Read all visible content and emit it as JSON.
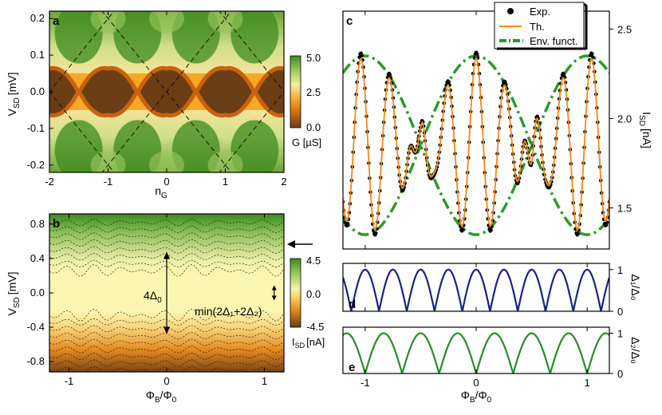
{
  "chart_data": [
    {
      "panel": "a",
      "type": "heatmap",
      "xlabel_main": "n",
      "xlabel_sub": "G",
      "ylabel_main": "V",
      "ylabel_sub": "SD",
      "ylabel_unit": "[mV]",
      "xlim": [
        -2,
        2
      ],
      "ylim": [
        -0.22,
        0.22
      ],
      "xticks": [
        "-2",
        "-1",
        "0",
        "1",
        "2"
      ],
      "yticks": [
        "0.2",
        "0.1",
        "0.0",
        "-0.1",
        "-0.2"
      ],
      "ytick_values": [
        0.2,
        0.1,
        0.0,
        -0.1,
        -0.2
      ],
      "xtick_values": [
        -2,
        -1,
        0,
        1,
        2
      ],
      "colorbar": {
        "ticks": [
          "5.0",
          "2.5",
          "0.0"
        ],
        "label": "G [µS]",
        "range": [
          0,
          5
        ]
      },
      "colors": {
        "low": "#6b3d14",
        "mid": "#f7a11a",
        "high": "#3d8a1e",
        "pale": "#f7f2a8"
      },
      "diamond_centers": [
        -2,
        -1,
        0,
        1,
        2
      ],
      "diamond_half_width_V": 0.055
    },
    {
      "panel": "b",
      "type": "heatmap",
      "xlabel": "ΦB/Φ0",
      "ylabel_main": "V",
      "ylabel_sub": "SD",
      "ylabel_unit": "[mV]",
      "xlim": [
        -1.2,
        1.2
      ],
      "ylim": [
        -0.92,
        0.92
      ],
      "xticks": [
        "-1",
        "0",
        "1"
      ],
      "xtick_values": [
        -1,
        0,
        1
      ],
      "yticks": [
        "0.8",
        "0.4",
        "0.0",
        "-0.4",
        "-0.8"
      ],
      "ytick_values": [
        0.8,
        0.4,
        0.0,
        -0.4,
        -0.8
      ],
      "colorbar": {
        "ticks": [
          "4.5",
          "0.0",
          "-4.5"
        ],
        "label_main": "I",
        "label_sub": "SD",
        "label_unit": "[nA]",
        "range": [
          -4.5,
          4.5
        ]
      },
      "annotations": [
        {
          "text_main": "4Δ",
          "text_sub": "0",
          "x": 0.0,
          "y_from": 0.46,
          "y_to": -0.46
        },
        {
          "text": "min(2Δ₁+2Δ₂)",
          "x": 1.1,
          "y_from": 0.07,
          "y_to": -0.07
        }
      ],
      "arrow_marker_V": 0.6
    },
    {
      "panel": "c",
      "type": "line",
      "xlim": [
        -1.2,
        1.2
      ],
      "ylim": [
        1.27,
        2.6
      ],
      "xtick_values": [
        -1,
        0,
        1
      ],
      "ylabel_main": "I",
      "ylabel_sub": "SD",
      "ylabel_unit": "[nA]",
      "yticks": [
        "2.5",
        "2.0",
        "1.5"
      ],
      "ytick_values": [
        2.5,
        2.0,
        1.5
      ],
      "legend": {
        "position": "top-right",
        "entries": [
          "Exp.",
          "Th.",
          "Env. funct."
        ]
      },
      "series": [
        {
          "name": "Exp.",
          "style": "dots",
          "color": "#000000"
        },
        {
          "name": "Th.",
          "style": "line",
          "color": "#f28a1c"
        },
        {
          "name": "Env. funct.",
          "style": "dash-dot",
          "color": "#2a9a2a"
        }
      ],
      "oscillation_period": 0.26,
      "envelope": {
        "center": 1.85,
        "amplitude": 0.5,
        "period": 1.0
      }
    },
    {
      "panel": "d",
      "type": "line",
      "xlim": [
        -1.2,
        1.2
      ],
      "ylim": [
        0,
        1.15
      ],
      "xtick_values": [
        -1,
        0,
        1
      ],
      "yticks": [
        "1",
        "0"
      ],
      "ytick_values": [
        1,
        0
      ],
      "ylabel": "Δ₁/Δ₀",
      "series": [
        {
          "name": "Δ₁/Δ₀",
          "color": "#1a237e",
          "period": 0.25,
          "offset": 0.125
        }
      ]
    },
    {
      "panel": "e",
      "type": "line",
      "xlim": [
        -1.2,
        1.2
      ],
      "ylim": [
        0,
        1.15
      ],
      "xticks": [
        "-1",
        "0",
        "1"
      ],
      "xtick_values": [
        -1,
        0,
        1
      ],
      "yticks": [
        "1",
        "0"
      ],
      "ytick_values": [
        1,
        0
      ],
      "ylabel": "Δ₂/Δ₀",
      "xlabel": "ΦB/Φ0",
      "series": [
        {
          "name": "Δ₂/Δ₀",
          "color": "#2a8a2a",
          "period": 0.3333,
          "offset": 0.0
        }
      ]
    }
  ],
  "labels": {
    "panel_a": "a",
    "panel_b": "b",
    "panel_c": "c",
    "panel_d": "d",
    "panel_e": "e",
    "phi_b": "Φ",
    "phi_b_sub": "B",
    "phi_0": "Φ",
    "phi_0_sub": "0"
  }
}
